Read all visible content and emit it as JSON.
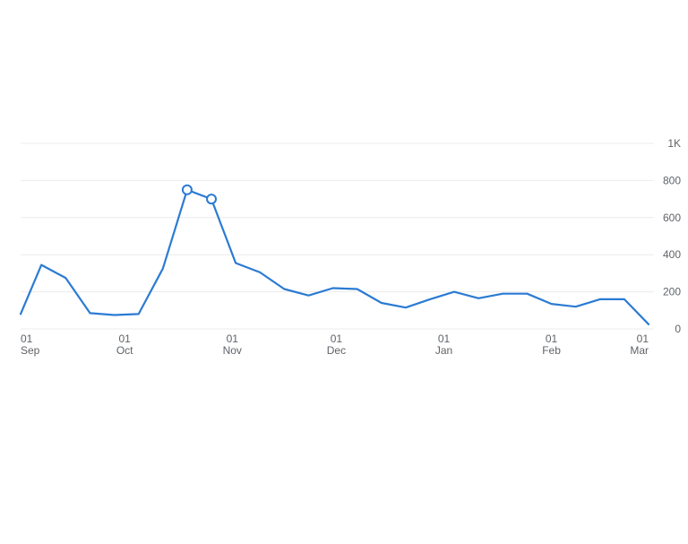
{
  "chart_data": {
    "type": "line",
    "title": "",
    "xlabel": "",
    "ylabel": "",
    "y_axis_position": "right",
    "grid": true,
    "ylim": [
      0,
      1000
    ],
    "y_ticks": [
      {
        "value": 0,
        "label": "0"
      },
      {
        "value": 200,
        "label": "200"
      },
      {
        "value": 400,
        "label": "400"
      },
      {
        "value": 600,
        "label": "600"
      },
      {
        "value": 800,
        "label": "800"
      },
      {
        "value": 1000,
        "label": "1K"
      }
    ],
    "xlim": [
      "2022-09-01",
      "2023-03-01"
    ],
    "x_ticks": [
      {
        "date": "2022-09-01",
        "day": "01",
        "month": "Sep"
      },
      {
        "date": "2022-10-01",
        "day": "01",
        "month": "Oct"
      },
      {
        "date": "2022-11-01",
        "day": "01",
        "month": "Nov"
      },
      {
        "date": "2022-12-01",
        "day": "01",
        "month": "Dec"
      },
      {
        "date": "2023-01-01",
        "day": "01",
        "month": "Jan"
      },
      {
        "date": "2023-02-01",
        "day": "01",
        "month": "Feb"
      },
      {
        "date": "2023-03-01",
        "day": "01",
        "month": "Mar"
      }
    ],
    "series": [
      {
        "color": "#2b7bd3",
        "points": [
          {
            "x": "2022-09-01",
            "y": 80
          },
          {
            "x": "2022-09-07",
            "y": 345
          },
          {
            "x": "2022-09-14",
            "y": 275
          },
          {
            "x": "2022-09-21",
            "y": 85
          },
          {
            "x": "2022-09-28",
            "y": 75
          },
          {
            "x": "2022-10-05",
            "y": 80
          },
          {
            "x": "2022-10-12",
            "y": 325
          },
          {
            "x": "2022-10-19",
            "y": 750,
            "marker": true
          },
          {
            "x": "2022-10-26",
            "y": 700,
            "marker": true
          },
          {
            "x": "2022-11-02",
            "y": 355
          },
          {
            "x": "2022-11-09",
            "y": 305
          },
          {
            "x": "2022-11-16",
            "y": 215
          },
          {
            "x": "2022-11-23",
            "y": 180
          },
          {
            "x": "2022-11-30",
            "y": 220
          },
          {
            "x": "2022-12-07",
            "y": 215
          },
          {
            "x": "2022-12-14",
            "y": 140
          },
          {
            "x": "2022-12-21",
            "y": 115
          },
          {
            "x": "2022-12-28",
            "y": 160
          },
          {
            "x": "2023-01-04",
            "y": 200
          },
          {
            "x": "2023-01-11",
            "y": 165
          },
          {
            "x": "2023-01-18",
            "y": 190
          },
          {
            "x": "2023-01-25",
            "y": 190
          },
          {
            "x": "2023-02-01",
            "y": 135
          },
          {
            "x": "2023-02-08",
            "y": 120
          },
          {
            "x": "2023-02-15",
            "y": 160
          },
          {
            "x": "2023-02-22",
            "y": 160
          },
          {
            "x": "2023-03-01",
            "y": 25
          }
        ]
      }
    ]
  }
}
